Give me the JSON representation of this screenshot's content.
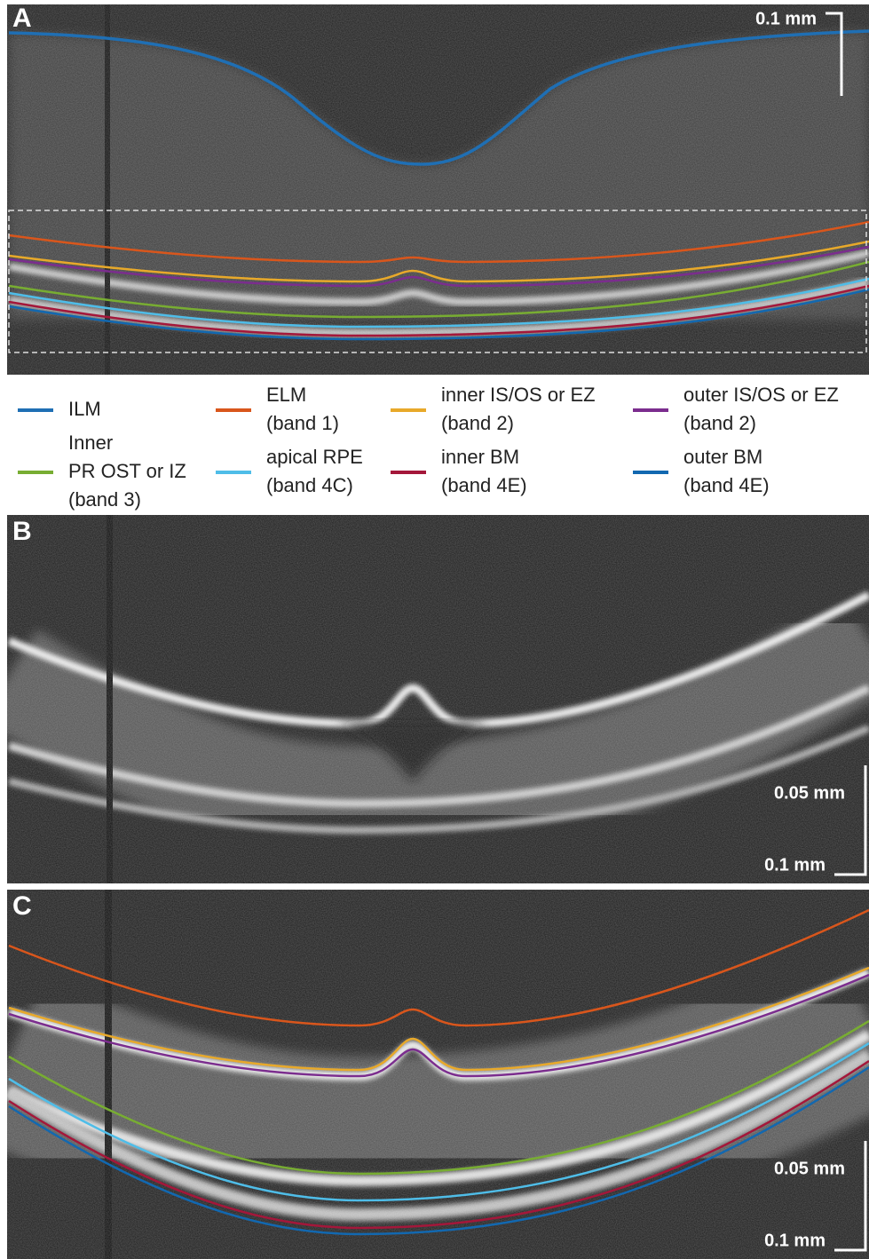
{
  "panels": [
    {
      "label": "A",
      "scale_labels": [
        "0.1 mm"
      ]
    },
    {
      "label": "B",
      "scale_labels": [
        "0.05 mm",
        "0.1 mm"
      ]
    },
    {
      "label": "C",
      "scale_labels": [
        "0.05 mm",
        "0.1 mm"
      ]
    }
  ],
  "legend": [
    {
      "lines": [
        "ILM"
      ]
    },
    {
      "lines": [
        "ELM",
        "(band 1)"
      ]
    },
    {
      "lines": [
        "inner IS/OS or EZ",
        "(band 2)"
      ]
    },
    {
      "lines": [
        "outer IS/OS or EZ",
        "(band 2)"
      ]
    },
    {
      "lines": [
        "Inner",
        "PR OST or IZ",
        "(band 3)"
      ]
    },
    {
      "lines": [
        "apical RPE",
        "(band 4C)"
      ]
    },
    {
      "lines": [
        "inner BM",
        "(band 4E)"
      ]
    },
    {
      "lines": [
        "outer BM",
        "(band 4E)"
      ]
    }
  ]
}
